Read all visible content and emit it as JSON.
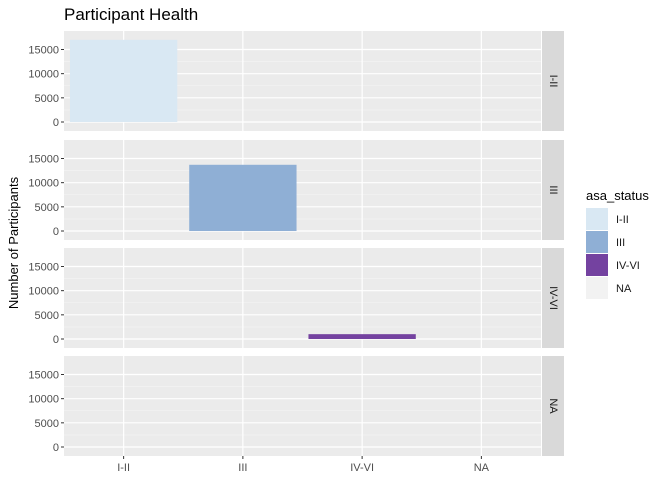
{
  "chart_data": {
    "type": "bar",
    "title": "Participant Health",
    "xlabel": "",
    "ylabel": "Number of Participants",
    "categories": [
      "I-II",
      "III",
      "IV-VI",
      "NA"
    ],
    "facets": [
      {
        "label": "I-II",
        "values": [
          17000,
          0,
          0,
          0
        ]
      },
      {
        "label": "III",
        "values": [
          0,
          13700,
          0,
          0
        ]
      },
      {
        "label": "IV-VI",
        "values": [
          0,
          0,
          1000,
          0
        ]
      },
      {
        "label": "NA",
        "values": [
          0,
          0,
          0,
          0
        ]
      }
    ],
    "ylim": [
      0,
      18000
    ],
    "yticks": [
      0,
      5000,
      10000,
      15000
    ],
    "grid": true,
    "facet_strip_position": "right",
    "legend": {
      "title": "asa_status",
      "placement": "right",
      "entries": [
        {
          "label": "I-II",
          "color": "#d9e8f3"
        },
        {
          "label": "III",
          "color": "#8fafd5"
        },
        {
          "label": "IV-VI",
          "color": "#7442a0"
        },
        {
          "label": "NA",
          "color": "#f2f2f2"
        }
      ]
    },
    "panel_background": "#ebebeb",
    "strip_background": "#d9d9d9"
  }
}
